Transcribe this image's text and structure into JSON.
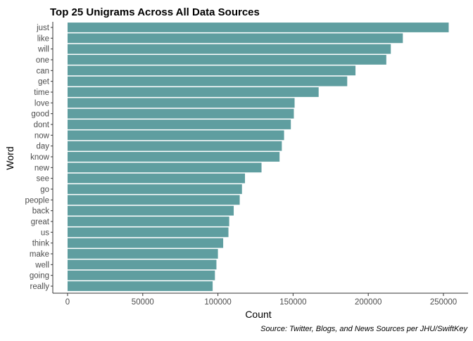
{
  "chart_data": {
    "type": "bar",
    "orientation": "horizontal",
    "title": "Top 25 Unigrams Across All Data Sources",
    "caption": "Source: Twitter, Blogs, and News Sources per JHU/SwiftKey",
    "xlabel": "Count",
    "ylabel": "Word",
    "xlim": [
      0,
      265000
    ],
    "xticks": [
      0,
      50000,
      100000,
      150000,
      200000,
      250000
    ],
    "xtick_labels": [
      "0",
      "50000",
      "100000",
      "150000",
      "200000",
      "250000"
    ],
    "grid": false,
    "bar_color": "#5f9ea0",
    "categories": [
      "just",
      "like",
      "will",
      "one",
      "can",
      "get",
      "time",
      "love",
      "good",
      "dont",
      "now",
      "day",
      "know",
      "new",
      "see",
      "go",
      "people",
      "back",
      "great",
      "us",
      "think",
      "make",
      "well",
      "going",
      "really"
    ],
    "values": [
      253500,
      223000,
      215000,
      212000,
      191500,
      186000,
      167000,
      151000,
      150500,
      148500,
      144000,
      142500,
      141000,
      129000,
      118000,
      116000,
      114500,
      110500,
      107500,
      107000,
      103500,
      100000,
      99000,
      98000,
      96500
    ]
  }
}
